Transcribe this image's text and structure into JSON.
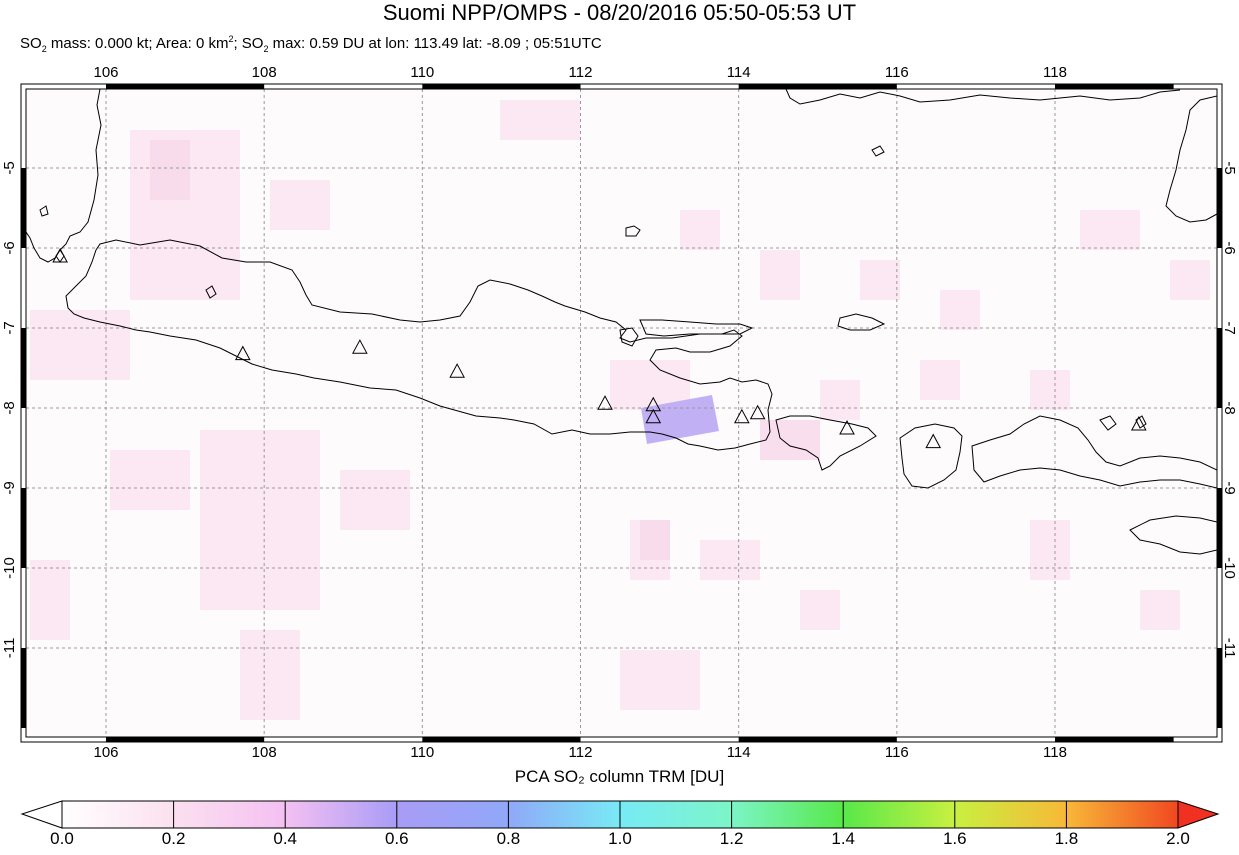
{
  "title": "Suomi NPP/OMPS - 08/20/2016 05:50-05:53 UT",
  "subtitle": {
    "so2_mass": "SO",
    "so2_mass_sub": "2",
    "mass_text": " mass: 0.000 kt; Area: 0 km",
    "area_sup": "2",
    "so2_max_pre": "; SO",
    "so2_max_sub": "2",
    "max_text": " max: 0.59 DU at lon: 113.49 lat: -8.09 ; 05:51UTC"
  },
  "map": {
    "lon_range": [
      105,
      119.5
    ],
    "lat_range": [
      -12,
      -4
    ],
    "lon_ticks": [
      106,
      108,
      110,
      112,
      114,
      116,
      118
    ],
    "lon_labels": [
      "106",
      "108",
      "110",
      "112",
      "114",
      "116",
      "118"
    ],
    "lat_ticks": [
      -5,
      -6,
      -7,
      -8,
      -9,
      -10,
      -11
    ],
    "lat_labels": [
      "-5",
      "-6",
      "-7",
      "-8",
      "-9",
      "-10",
      "-11"
    ],
    "grid": true,
    "max_marker": {
      "lon": 113.49,
      "lat": -8.09,
      "value": 0.59
    },
    "volcanoes": [
      {
        "lon": 105.42,
        "lat": -6.1
      },
      {
        "lon": 107.73,
        "lat": -7.32
      },
      {
        "lon": 109.21,
        "lat": -7.24
      },
      {
        "lon": 110.44,
        "lat": -7.54
      },
      {
        "lon": 112.31,
        "lat": -7.94
      },
      {
        "lon": 112.92,
        "lat": -7.96
      },
      {
        "lon": 112.92,
        "lat": -8.11
      },
      {
        "lon": 114.04,
        "lat": -8.11
      },
      {
        "lon": 114.24,
        "lat": -8.06
      },
      {
        "lon": 115.37,
        "lat": -8.25
      },
      {
        "lon": 116.46,
        "lat": -8.42
      },
      {
        "lon": 119.06,
        "lat": -8.2
      }
    ]
  },
  "colorbar": {
    "title": "PCA SO₂ column TRM [DU]",
    "min": 0.0,
    "max": 2.0,
    "labels": [
      "0.0",
      "0.2",
      "0.4",
      "0.6",
      "0.8",
      "1.0",
      "1.2",
      "1.4",
      "1.6",
      "1.8",
      "2.0"
    ],
    "colors": [
      "#ffffff",
      "#fbe3f0",
      "#f6c2f0",
      "#c9a6f7",
      "#9a9af8",
      "#7fd0f8",
      "#7ff7f0",
      "#7ff5a0",
      "#50e040",
      "#d8f53a",
      "#f8d040",
      "#f89030",
      "#f03020"
    ]
  }
}
